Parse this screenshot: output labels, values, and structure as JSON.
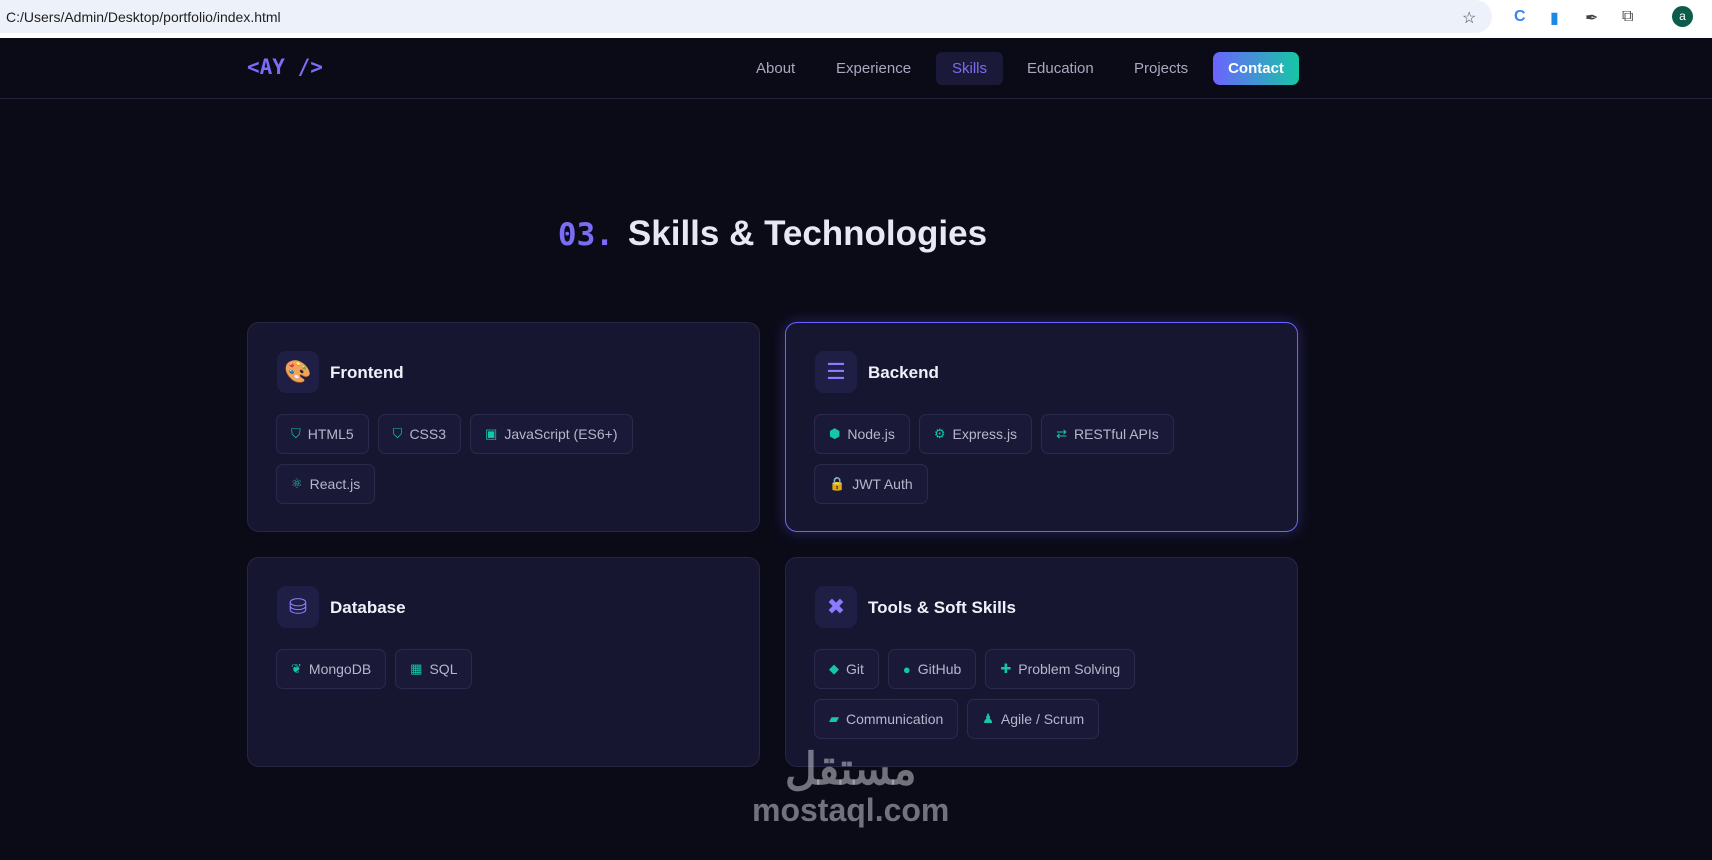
{
  "browser": {
    "address": "C:/Users/Admin/Desktop/portfolio/index.html",
    "avatar_letter": "a"
  },
  "nav": {
    "logo": "<AY />",
    "items": [
      {
        "label": "About"
      },
      {
        "label": "Experience"
      },
      {
        "label": "Skills",
        "active": true
      },
      {
        "label": "Education"
      },
      {
        "label": "Projects"
      }
    ],
    "contact": "Contact"
  },
  "section": {
    "number": "03.",
    "title": "Skills & Technologies"
  },
  "colors": {
    "accent": "#7b6cf6",
    "teal": "#16c7a5",
    "background": "#0b0b18",
    "card": "#161631"
  },
  "cards": [
    {
      "title": "Frontend",
      "icon": "palette-icon",
      "skills": [
        {
          "label": "HTML5",
          "icon": "html5-icon"
        },
        {
          "label": "CSS3",
          "icon": "css3-icon"
        },
        {
          "label": "JavaScript (ES6+)",
          "icon": "js-icon"
        },
        {
          "label": "React.js",
          "icon": "react-icon"
        }
      ]
    },
    {
      "title": "Backend",
      "icon": "server-icon",
      "skills": [
        {
          "label": "Node.js",
          "icon": "node-icon"
        },
        {
          "label": "Express.js",
          "icon": "gears-icon"
        },
        {
          "label": "RESTful APIs",
          "icon": "exchange-icon"
        },
        {
          "label": "JWT Auth",
          "icon": "lock-icon"
        }
      ]
    },
    {
      "title": "Database",
      "icon": "database-icon",
      "skills": [
        {
          "label": "MongoDB",
          "icon": "leaf-icon"
        },
        {
          "label": "SQL",
          "icon": "table-icon"
        }
      ]
    },
    {
      "title": "Tools & Soft Skills",
      "icon": "tools-icon",
      "skills": [
        {
          "label": "Git",
          "icon": "git-icon"
        },
        {
          "label": "GitHub",
          "icon": "github-icon"
        },
        {
          "label": "Problem Solving",
          "icon": "puzzle-icon"
        },
        {
          "label": "Communication",
          "icon": "comments-icon"
        },
        {
          "label": "Agile / Scrum",
          "icon": "users-icon"
        }
      ]
    }
  ],
  "watermark": {
    "arabic": "مستقل",
    "latin": "mostaql.com"
  }
}
